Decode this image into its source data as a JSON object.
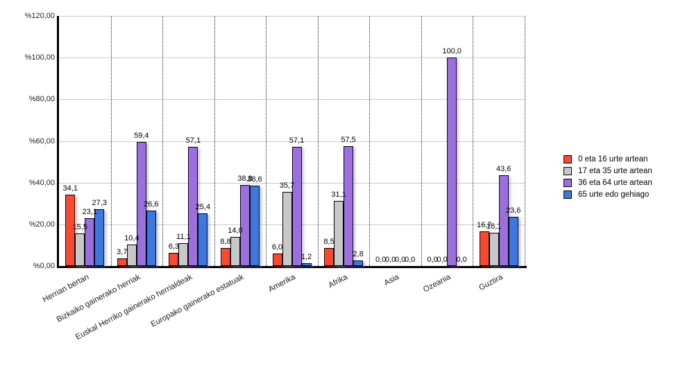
{
  "chart_data": {
    "type": "bar",
    "title": "",
    "categories": [
      "Herrian bertan",
      "Bizkaiko gainerako herriak",
      "Euskal Herriko gainerako herrialdeak",
      "Europako gainerako estatuak",
      "Amerika",
      "Afrika",
      "Asia",
      "Ozeania",
      "Guztira"
    ],
    "series": [
      {
        "name": "0 eta 16 urte artean",
        "color": "#F9492F",
        "values": [
          34.1,
          3.7,
          6.3,
          8.8,
          6.0,
          8.5,
          0.0,
          0.0,
          16.7
        ]
      },
      {
        "name": "17 eta 35 urte artean",
        "color": "#C8C8C8",
        "values": [
          15.5,
          10.4,
          11.1,
          14.0,
          35.7,
          31.1,
          0.0,
          0.0,
          16.1
        ]
      },
      {
        "name": "36 eta 64 urte artean",
        "color": "#9B6FDD",
        "values": [
          23.1,
          59.4,
          57.1,
          38.8,
          57.1,
          57.5,
          0.0,
          100.0,
          43.6
        ]
      },
      {
        "name": "65 urte edo gehiago",
        "color": "#3D77E0",
        "values": [
          27.3,
          26.6,
          25.4,
          38.6,
          1.2,
          2.8,
          0.0,
          0.0,
          23.6
        ]
      }
    ],
    "ylim": [
      0,
      120
    ],
    "ytick_step": 20,
    "ytick_labels": [
      "%0,00",
      "%20,00",
      "%40,00",
      "%60,00",
      "%80,00",
      "%100,00",
      "%120,00"
    ],
    "value_labels_shown": true,
    "decimal_separator": ",",
    "grid": true,
    "legend_position": "right",
    "axis_color": "#000000",
    "grid_color": "#cccccc"
  }
}
